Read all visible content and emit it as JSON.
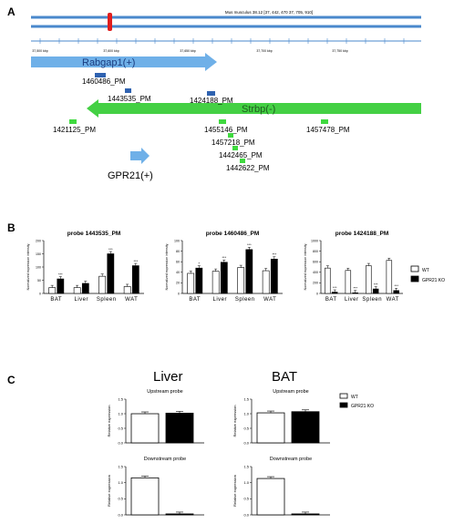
{
  "panels": {
    "a": "A",
    "b": "B",
    "c": "C"
  },
  "genome": {
    "chrom_label": "Mus musculus 38.12 [37, 442, 470 37, 705, 910]",
    "ticks": [
      "37,500 kbp",
      "37,600 kbp",
      "37,650 kbp",
      "37,700 kbp",
      "37,750 kbp"
    ],
    "genes": [
      {
        "label": "Rabgap1(+)"
      },
      {
        "label": "Strbp(-)"
      },
      {
        "label": "GPR21(+)"
      }
    ],
    "probes": [
      {
        "label": "1460486_PM",
        "color": "#2f62b0"
      },
      {
        "label": "1443535_PM",
        "color": "#2f62b0"
      },
      {
        "label": "1424188_PM",
        "color": "#2f62b0"
      },
      {
        "label": "1421125_PM",
        "color": "#3fd93f"
      },
      {
        "label": "1455146_PM",
        "color": "#3fd93f"
      },
      {
        "label": "1457218_PM",
        "color": "#3fd93f"
      },
      {
        "label": "1442465_PM",
        "color": "#3fd93f"
      },
      {
        "label": "1442622_PM",
        "color": "#3fd93f"
      },
      {
        "label": "1457478_PM",
        "color": "#3fd93f"
      }
    ],
    "colors": {
      "chrom": "#4a88cc",
      "marker": "#e01e1e",
      "rab": "#6fb0e8",
      "strbp": "#44d044",
      "gpr": "#6fb0e8"
    }
  },
  "chart_data": [
    {
      "type": "bar",
      "title": "probe 1443535_PM",
      "ylabel": "Normalized expression intensity",
      "categories": [
        "BAT",
        "Liver",
        "Spleen",
        "WAT"
      ],
      "ylim": [
        0,
        200
      ],
      "yticks": [
        "0",
        "50",
        "100",
        "150",
        "200"
      ],
      "series": [
        {
          "name": "WT",
          "values": [
            22,
            22,
            65,
            26
          ]
        },
        {
          "name": "GPR21 KO",
          "values": [
            55,
            38,
            150,
            105
          ]
        }
      ],
      "sig": [
        "***",
        "",
        "***",
        "***"
      ]
    },
    {
      "type": "bar",
      "title": "probe 1460486_PM",
      "ylabel": "Normalized expression intensity",
      "categories": [
        "BAT",
        "Liver",
        "Spleen",
        "WAT"
      ],
      "ylim": [
        0,
        100
      ],
      "yticks": [
        "0",
        "20",
        "40",
        "60",
        "80",
        "100"
      ],
      "series": [
        {
          "name": "WT",
          "values": [
            38,
            42,
            49,
            43
          ]
        },
        {
          "name": "GPR21 KO",
          "values": [
            48,
            59,
            83,
            65
          ]
        }
      ],
      "sig": [
        "*",
        "***",
        "***",
        "***"
      ]
    },
    {
      "type": "bar",
      "title": "probe 1424188_PM",
      "ylabel": "Normalized expression intensity",
      "categories": [
        "BAT",
        "Liver",
        "Spleen",
        "WAT"
      ],
      "ylim": [
        0,
        1000
      ],
      "yticks": [
        "0",
        "200",
        "400",
        "600",
        "800",
        "1000"
      ],
      "series": [
        {
          "name": "WT",
          "values": [
            480,
            435,
            525,
            625
          ]
        },
        {
          "name": "GPR21 KO",
          "values": [
            25,
            12,
            85,
            55
          ]
        }
      ],
      "sig": [
        "***",
        "***",
        "***",
        "***"
      ]
    },
    {
      "type": "bar",
      "title": "Upstream probe",
      "ylabel": "Relative expression",
      "categories": [
        "WT",
        "GPR21 KO"
      ],
      "ylim": [
        0,
        1.5
      ],
      "yticks": [
        "0.0",
        "0.5",
        "1.0",
        "1.5"
      ],
      "values": [
        1.0,
        1.02
      ]
    },
    {
      "type": "bar",
      "title": "Upstream probe",
      "ylabel": "Relative expression",
      "categories": [
        "WT",
        "GPR21 KO"
      ],
      "ylim": [
        0,
        1.5
      ],
      "yticks": [
        "0.0",
        "0.5",
        "1.0",
        "1.5"
      ],
      "values": [
        1.03,
        1.07
      ]
    },
    {
      "type": "bar",
      "title": "Downstream probe",
      "ylabel": "Relative expression",
      "categories": [
        "WT",
        "GPR21 KO"
      ],
      "ylim": [
        0,
        1.5
      ],
      "yticks": [
        "0.0",
        "0.5",
        "1.0",
        "1.5"
      ],
      "values": [
        1.15,
        0.03
      ]
    },
    {
      "type": "bar",
      "title": "Downstream probe",
      "ylabel": "Relative expression",
      "categories": [
        "WT",
        "GPR21 KO"
      ],
      "ylim": [
        0,
        1.5
      ],
      "yticks": [
        "0.0",
        "0.5",
        "1.0",
        "1.5"
      ],
      "values": [
        1.13,
        0.03
      ]
    }
  ],
  "panel_b_legend": [
    "WT",
    "GPR21 KO"
  ],
  "panel_c": {
    "tissues": [
      "Liver",
      "BAT"
    ],
    "legend": [
      "WT",
      "GPR21 KO"
    ]
  }
}
